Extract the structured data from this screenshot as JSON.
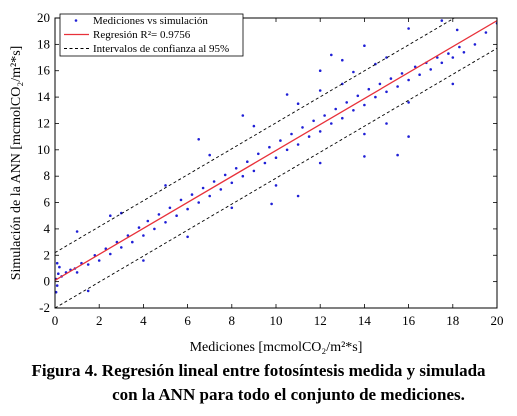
{
  "chart_data": {
    "type": "scatter",
    "xlabel": "Mediciones [mcmolCO₂/m²*s]",
    "ylabel": "Simulación de la ANN [mcmolCO₂/m²*s]",
    "xlim": [
      0,
      20
    ],
    "ylim": [
      -2,
      20
    ],
    "xticks": [
      "0",
      "2",
      "4",
      "6",
      "8",
      "10",
      "12",
      "14",
      "16",
      "18",
      "20"
    ],
    "yticks": [
      "-2",
      "0",
      "2",
      "4",
      "6",
      "8",
      "10",
      "12",
      "14",
      "16",
      "18",
      "20"
    ],
    "grid": false,
    "legend_placement": "top-left",
    "legend": [
      {
        "label": "Mediciones vs simulación",
        "style": "points",
        "color": "#1f1fd6"
      },
      {
        "label": "Regresión R²= 0.9756",
        "style": "solid-line",
        "color": "#e8313a"
      },
      {
        "label": "Intervalos de confianza al 95%",
        "style": "dashed-line",
        "color": "#000000"
      }
    ],
    "series": [
      {
        "name": "Mediciones vs simulación",
        "color": "#1f1fd6",
        "points": [
          [
            0.05,
            0.2
          ],
          [
            0.1,
            -0.3
          ],
          [
            0.15,
            0.6
          ],
          [
            0.2,
            1.1
          ],
          [
            0.1,
            1.4
          ],
          [
            0.05,
            -0.8
          ],
          [
            0.3,
            0.4
          ],
          [
            0.5,
            0.7
          ],
          [
            0.7,
            0.9
          ],
          [
            0.9,
            1.0
          ],
          [
            1.0,
            0.7
          ],
          [
            1.2,
            1.4
          ],
          [
            1.5,
            1.3
          ],
          [
            1.8,
            2.0
          ],
          [
            2.0,
            1.6
          ],
          [
            2.3,
            2.5
          ],
          [
            2.5,
            2.1
          ],
          [
            2.8,
            3.0
          ],
          [
            3.0,
            2.6
          ],
          [
            3.3,
            3.5
          ],
          [
            3.5,
            3.0
          ],
          [
            3.8,
            4.1
          ],
          [
            4.0,
            3.5
          ],
          [
            4.2,
            4.6
          ],
          [
            4.5,
            4.0
          ],
          [
            4.7,
            5.1
          ],
          [
            5.0,
            4.5
          ],
          [
            5.2,
            5.6
          ],
          [
            5.5,
            5.0
          ],
          [
            5.7,
            6.2
          ],
          [
            6.0,
            5.5
          ],
          [
            6.2,
            6.6
          ],
          [
            6.5,
            6.0
          ],
          [
            6.7,
            7.1
          ],
          [
            7.0,
            6.5
          ],
          [
            7.2,
            7.6
          ],
          [
            7.5,
            7.0
          ],
          [
            7.7,
            8.1
          ],
          [
            8.0,
            7.5
          ],
          [
            8.2,
            8.6
          ],
          [
            8.5,
            8.0
          ],
          [
            8.7,
            9.1
          ],
          [
            9.0,
            8.4
          ],
          [
            9.2,
            9.7
          ],
          [
            9.5,
            9.0
          ],
          [
            9.7,
            10.2
          ],
          [
            10.0,
            9.4
          ],
          [
            10.2,
            10.7
          ],
          [
            10.5,
            10.0
          ],
          [
            10.7,
            11.2
          ],
          [
            11.0,
            10.4
          ],
          [
            11.2,
            11.7
          ],
          [
            11.5,
            11.0
          ],
          [
            11.7,
            12.2
          ],
          [
            12.0,
            11.4
          ],
          [
            12.2,
            12.6
          ],
          [
            12.5,
            12.0
          ],
          [
            12.7,
            13.1
          ],
          [
            13.0,
            12.4
          ],
          [
            13.2,
            13.6
          ],
          [
            13.5,
            13.0
          ],
          [
            13.7,
            14.1
          ],
          [
            14.0,
            13.4
          ],
          [
            14.2,
            14.6
          ],
          [
            14.5,
            14.0
          ],
          [
            14.7,
            15.0
          ],
          [
            15.0,
            14.4
          ],
          [
            15.2,
            15.4
          ],
          [
            15.5,
            14.8
          ],
          [
            15.7,
            15.8
          ],
          [
            16.0,
            15.3
          ],
          [
            16.3,
            16.3
          ],
          [
            16.5,
            15.7
          ],
          [
            16.8,
            16.6
          ],
          [
            17.0,
            16.1
          ],
          [
            17.3,
            17.0
          ],
          [
            17.5,
            16.6
          ],
          [
            17.8,
            17.3
          ],
          [
            18.0,
            17.0
          ],
          [
            18.3,
            17.8
          ],
          [
            18.5,
            17.4
          ],
          [
            19.0,
            18.0
          ],
          [
            19.5,
            18.9
          ],
          [
            20.0,
            19.6
          ],
          [
            3.0,
            5.2
          ],
          [
            5.0,
            7.3
          ],
          [
            7.0,
            9.6
          ],
          [
            9.0,
            11.8
          ],
          [
            10.5,
            14.2
          ],
          [
            12.0,
            16.0
          ],
          [
            13.0,
            16.8
          ],
          [
            14.0,
            17.9
          ],
          [
            16.0,
            19.2
          ],
          [
            17.5,
            19.8
          ],
          [
            18.2,
            19.1
          ],
          [
            4.0,
            1.6
          ],
          [
            6.0,
            3.4
          ],
          [
            8.0,
            5.6
          ],
          [
            10.0,
            7.3
          ],
          [
            12.0,
            9.0
          ],
          [
            14.0,
            11.2
          ],
          [
            15.0,
            12.0
          ],
          [
            16.0,
            13.6
          ],
          [
            18.0,
            15.0
          ],
          [
            11.0,
            6.5
          ],
          [
            14.0,
            9.5
          ],
          [
            2.5,
            5.0
          ],
          [
            1.0,
            3.8
          ],
          [
            1.5,
            -0.7
          ],
          [
            12.5,
            17.2
          ],
          [
            6.5,
            10.8
          ],
          [
            15.5,
            9.6
          ],
          [
            16.0,
            11.0
          ],
          [
            9.8,
            5.9
          ],
          [
            8.5,
            12.6
          ],
          [
            13.5,
            15.9
          ],
          [
            14.5,
            16.5
          ],
          [
            15.0,
            17.0
          ],
          [
            11.0,
            13.5
          ],
          [
            12.0,
            14.5
          ],
          [
            13.0,
            15.0
          ]
        ]
      },
      {
        "name": "Regresión R²= 0.9756",
        "color": "#e8313a",
        "line": [
          [
            0,
            0.1
          ],
          [
            20,
            19.8
          ]
        ]
      },
      {
        "name": "Intervalos de confianza al 95%",
        "color": "#000000",
        "upper": [
          [
            0,
            2.2
          ],
          [
            20,
            21.9
          ]
        ],
        "lower": [
          [
            0,
            -2.0
          ],
          [
            20,
            17.7
          ]
        ]
      }
    ]
  },
  "caption": {
    "line1": "Figura 4. Regresión lineal entre fotosíntesis medida y simulada",
    "line2": "con la ANN para todo el conjunto de mediciones."
  }
}
